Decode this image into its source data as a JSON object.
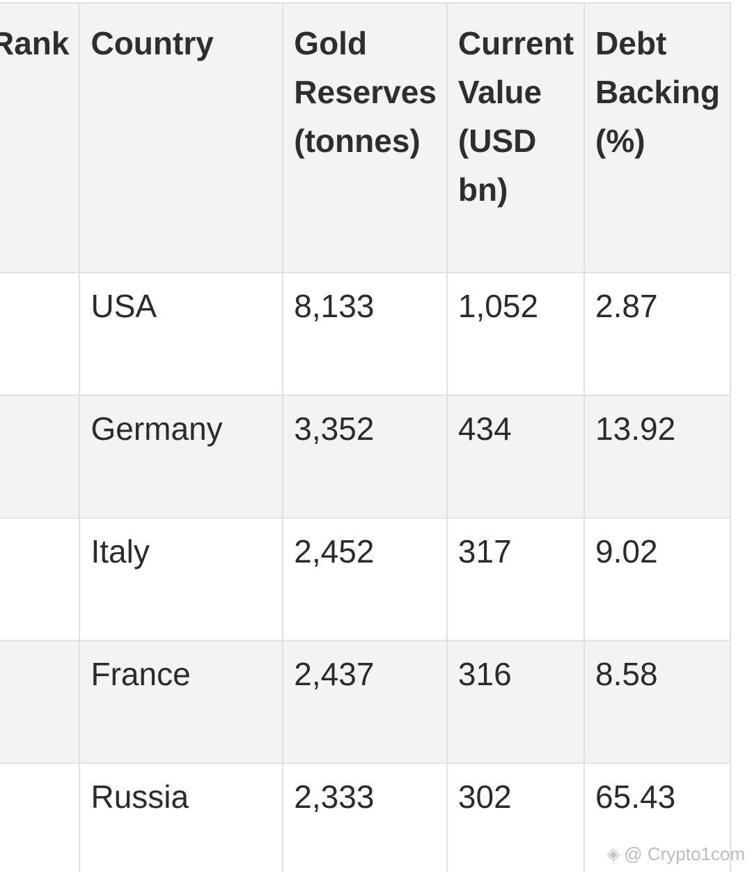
{
  "table": {
    "headers": {
      "rank": "Rank",
      "country": "Country",
      "reserves": "Gold Reserves (tonnes)",
      "value": "Current Value (USD bn)",
      "backing": "Debt Backing (%)"
    },
    "rows": [
      {
        "rank": "",
        "country": "USA",
        "reserves": "8,133",
        "value": "1,052",
        "backing": "2.87"
      },
      {
        "rank": "",
        "country": "Germany",
        "reserves": "3,352",
        "value": "434",
        "backing": "13.92"
      },
      {
        "rank": "",
        "country": "Italy",
        "reserves": "2,452",
        "value": "317",
        "backing": "9.02"
      },
      {
        "rank": "",
        "country": "France",
        "reserves": "2,437",
        "value": "316",
        "backing": "8.58"
      },
      {
        "rank": "",
        "country": "Russia",
        "reserves": "2,333",
        "value": "302",
        "backing": "65.43"
      }
    ]
  },
  "watermark": {
    "icon": "binance-diamond-icon",
    "text": "@ Crypto1com"
  }
}
